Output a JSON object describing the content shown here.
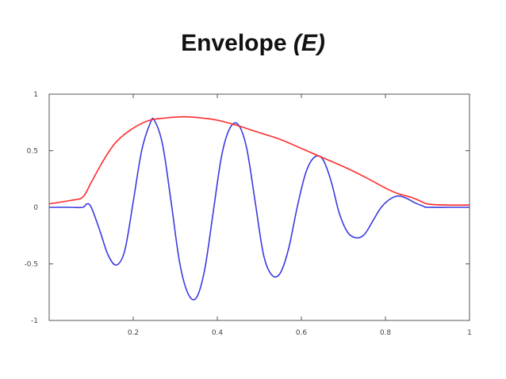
{
  "title": {
    "main": "Envelope",
    "italic": "(E)"
  },
  "chart_data": {
    "type": "line",
    "xlim": [
      0,
      1
    ],
    "ylim": [
      -1,
      1
    ],
    "xticks": [
      "0.2",
      "0.4",
      "0.6",
      "0.8",
      "1"
    ],
    "yticks": [
      "1",
      "0.5",
      "0",
      "-0.5",
      "-1"
    ],
    "grid": false,
    "series": [
      {
        "color": "#ff2a2a",
        "role": "envelope",
        "x": [
          0,
          0.05,
          0.08,
          0.1,
          0.13,
          0.16,
          0.2,
          0.24,
          0.28,
          0.32,
          0.36,
          0.4,
          0.45,
          0.5,
          0.55,
          0.6,
          0.65,
          0.7,
          0.75,
          0.8,
          0.83,
          0.86,
          0.88,
          0.9,
          0.94,
          1.0
        ],
        "y": [
          0.03,
          0.06,
          0.09,
          0.22,
          0.42,
          0.58,
          0.7,
          0.77,
          0.79,
          0.8,
          0.79,
          0.77,
          0.72,
          0.66,
          0.6,
          0.52,
          0.44,
          0.36,
          0.27,
          0.17,
          0.12,
          0.09,
          0.06,
          0.03,
          0.02,
          0.02
        ]
      },
      {
        "color": "#3a3ae0",
        "role": "signal",
        "x": [
          0,
          0.05,
          0.08,
          0.09,
          0.1,
          0.12,
          0.14,
          0.16,
          0.18,
          0.2,
          0.22,
          0.24,
          0.25,
          0.27,
          0.29,
          0.31,
          0.33,
          0.35,
          0.37,
          0.39,
          0.41,
          0.43,
          0.45,
          0.47,
          0.49,
          0.51,
          0.53,
          0.55,
          0.57,
          0.59,
          0.61,
          0.63,
          0.65,
          0.67,
          0.69,
          0.71,
          0.73,
          0.75,
          0.77,
          0.79,
          0.81,
          0.83,
          0.85,
          0.87,
          0.89,
          0.9,
          0.95,
          1.0
        ],
        "y": [
          0.0,
          0.0,
          0.0,
          0.03,
          0.0,
          -0.2,
          -0.42,
          -0.51,
          -0.38,
          0.05,
          0.5,
          0.74,
          0.77,
          0.55,
          0.05,
          -0.48,
          -0.76,
          -0.8,
          -0.55,
          -0.05,
          0.45,
          0.7,
          0.73,
          0.52,
          0.05,
          -0.42,
          -0.6,
          -0.58,
          -0.36,
          0.0,
          0.3,
          0.44,
          0.43,
          0.24,
          -0.05,
          -0.22,
          -0.27,
          -0.24,
          -0.12,
          0.0,
          0.07,
          0.1,
          0.08,
          0.04,
          0.01,
          0.0,
          0.0,
          0.0
        ]
      }
    ]
  }
}
